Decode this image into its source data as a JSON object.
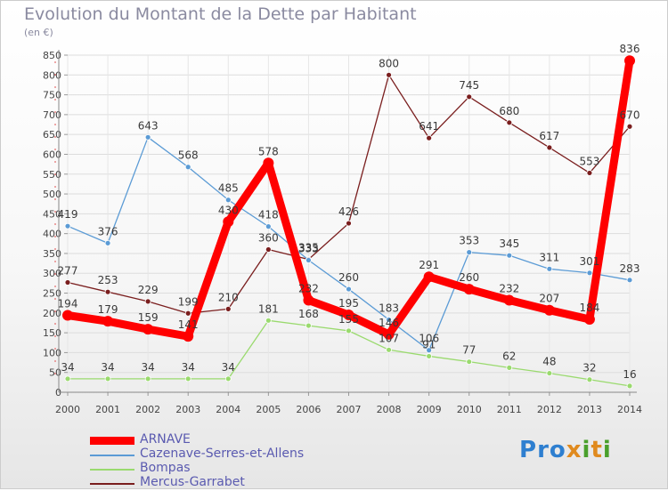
{
  "header": {
    "title": "Evolution du Montant de la Dette par Habitant",
    "unit": "(en €)"
  },
  "logo": {
    "text": "Proxiti"
  },
  "chart_data": {
    "type": "line",
    "title": "Evolution du Montant de la Dette par Habitant",
    "ylabel": "(en €)",
    "ylim": [
      0,
      850
    ],
    "y_ticks": [
      0,
      50,
      100,
      150,
      200,
      250,
      300,
      350,
      400,
      450,
      500,
      550,
      600,
      650,
      700,
      750,
      800,
      850
    ],
    "x": [
      "2000",
      "2001",
      "2002",
      "2003",
      "2004",
      "2005",
      "2006",
      "2007",
      "2008",
      "2009",
      "2010",
      "2011",
      "2012",
      "2013",
      "2014"
    ],
    "grid": true,
    "legend_position": "bottom-left",
    "series": [
      {
        "name": "Mercus-Garrabet",
        "color": "#7a1e1e",
        "values": [
          277,
          253,
          229,
          199,
          210,
          360,
          335,
          426,
          800,
          641,
          745,
          680,
          617,
          553,
          670
        ]
      },
      {
        "name": "Cazenave-Serres-et-Allens",
        "color": "#5b9bd5",
        "values": [
          419,
          376,
          643,
          568,
          485,
          418,
          333,
          260,
          183,
          106,
          353,
          345,
          311,
          301,
          283
        ]
      },
      {
        "name": "Bompas",
        "color": "#9ada6e",
        "values": [
          34,
          34,
          34,
          34,
          34,
          181,
          168,
          155,
          107,
          91,
          77,
          62,
          48,
          32,
          16
        ]
      },
      {
        "name": "ARNAVE",
        "color": "#ff0000",
        "values": [
          194,
          179,
          159,
          141,
          430,
          578,
          232,
          195,
          146,
          291,
          260,
          232,
          207,
          184,
          836
        ]
      }
    ]
  }
}
